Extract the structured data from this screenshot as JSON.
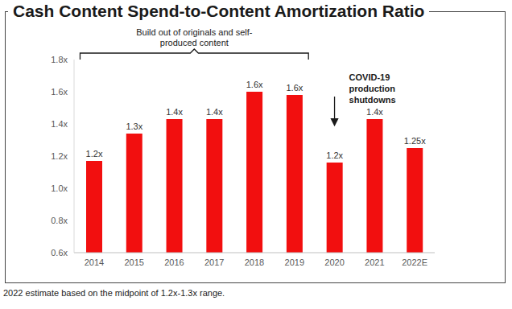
{
  "chart_data": {
    "type": "bar",
    "title": "Cash Content Spend-to-Content Amortization Ratio",
    "categories": [
      "2014",
      "2015",
      "2016",
      "2017",
      "2018",
      "2019",
      "2020",
      "2021",
      "2022E"
    ],
    "values": [
      1.17,
      1.34,
      1.43,
      1.43,
      1.6,
      1.58,
      1.16,
      1.43,
      1.25
    ],
    "value_labels": [
      "1.2x",
      "1.3x",
      "1.4x",
      "1.4x",
      "1.6x",
      "1.6x",
      "1.2x",
      "1.4x",
      "1.25x"
    ],
    "color": "#f20f0f",
    "ylim": [
      0.6,
      1.8
    ],
    "yticks": [
      {
        "value": 0.6,
        "label": "0.6x"
      },
      {
        "value": 0.8,
        "label": "0.8x"
      },
      {
        "value": 1.0,
        "label": "1.0x"
      },
      {
        "value": 1.2,
        "label": "1.2x"
      },
      {
        "value": 1.4,
        "label": "1.4x"
      },
      {
        "value": 1.6,
        "label": "1.6x"
      },
      {
        "value": 1.8,
        "label": "1.8x"
      }
    ],
    "grid": false,
    "data_labels": true,
    "annotations": [
      {
        "lines": [
          "Build out of originals and self-",
          "produced content"
        ],
        "from": "2014",
        "to": "2019"
      },
      {
        "lines": [
          "COVID-19",
          "production",
          "shutdowns"
        ],
        "category": "2020"
      }
    ],
    "footnote": "2022 estimate based on the midpoint of 1.2x-1.3x range."
  }
}
